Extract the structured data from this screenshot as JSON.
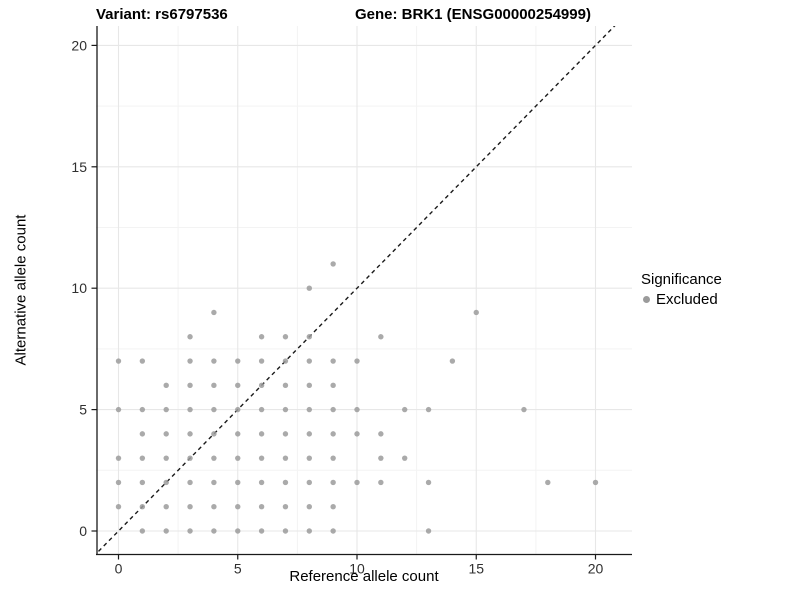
{
  "chart_data": {
    "type": "scatter",
    "titles": {
      "left": "Variant: rs6797536",
      "right": "Gene: BRK1 (ENSG00000254999)"
    },
    "xlabel": "Reference allele count",
    "ylabel": "Alternative allele count",
    "x_ticks": [
      0,
      5,
      10,
      15,
      20
    ],
    "y_ticks": [
      0,
      5,
      10,
      15,
      20
    ],
    "minor_ticks": [
      2.5,
      7.5,
      12.5,
      17.5
    ],
    "xlim": [
      -1,
      21
    ],
    "ylim": [
      -1,
      21
    ],
    "grid": "major and minor, light gray, on white panel",
    "identity_line": {
      "equation": "y = x",
      "style": "dashed",
      "color": "#1a1a1a"
    },
    "point_color": "#9b9b9b",
    "legend": {
      "title": "Significance",
      "position": "right",
      "items": [
        {
          "label": "Excluded",
          "color": "#9b9b9b"
        }
      ]
    },
    "points": [
      [
        1,
        0
      ],
      [
        2,
        0
      ],
      [
        3,
        0
      ],
      [
        4,
        0
      ],
      [
        5,
        0
      ],
      [
        6,
        0
      ],
      [
        7,
        0
      ],
      [
        8,
        0
      ],
      [
        9,
        0
      ],
      [
        13,
        0
      ],
      [
        0,
        1
      ],
      [
        1,
        1
      ],
      [
        2,
        1
      ],
      [
        3,
        1
      ],
      [
        4,
        1
      ],
      [
        5,
        1
      ],
      [
        6,
        1
      ],
      [
        7,
        1
      ],
      [
        8,
        1
      ],
      [
        9,
        1
      ],
      [
        0,
        2
      ],
      [
        1,
        2
      ],
      [
        2,
        2
      ],
      [
        3,
        2
      ],
      [
        4,
        2
      ],
      [
        5,
        2
      ],
      [
        6,
        2
      ],
      [
        7,
        2
      ],
      [
        8,
        2
      ],
      [
        9,
        2
      ],
      [
        10,
        2
      ],
      [
        11,
        2
      ],
      [
        13,
        2
      ],
      [
        18,
        2
      ],
      [
        20,
        2
      ],
      [
        0,
        3
      ],
      [
        1,
        3
      ],
      [
        2,
        3
      ],
      [
        3,
        3
      ],
      [
        4,
        3
      ],
      [
        5,
        3
      ],
      [
        6,
        3
      ],
      [
        7,
        3
      ],
      [
        8,
        3
      ],
      [
        9,
        3
      ],
      [
        11,
        3
      ],
      [
        12,
        3
      ],
      [
        1,
        4
      ],
      [
        2,
        4
      ],
      [
        3,
        4
      ],
      [
        4,
        4
      ],
      [
        5,
        4
      ],
      [
        6,
        4
      ],
      [
        7,
        4
      ],
      [
        8,
        4
      ],
      [
        9,
        4
      ],
      [
        10,
        4
      ],
      [
        11,
        4
      ],
      [
        0,
        5
      ],
      [
        1,
        5
      ],
      [
        2,
        5
      ],
      [
        3,
        5
      ],
      [
        4,
        5
      ],
      [
        5,
        5
      ],
      [
        6,
        5
      ],
      [
        7,
        5
      ],
      [
        8,
        5
      ],
      [
        9,
        5
      ],
      [
        10,
        5
      ],
      [
        12,
        5
      ],
      [
        13,
        5
      ],
      [
        17,
        5
      ],
      [
        2,
        6
      ],
      [
        3,
        6
      ],
      [
        4,
        6
      ],
      [
        5,
        6
      ],
      [
        6,
        6
      ],
      [
        7,
        6
      ],
      [
        8,
        6
      ],
      [
        9,
        6
      ],
      [
        0,
        7
      ],
      [
        1,
        7
      ],
      [
        3,
        7
      ],
      [
        4,
        7
      ],
      [
        5,
        7
      ],
      [
        6,
        7
      ],
      [
        7,
        7
      ],
      [
        8,
        7
      ],
      [
        9,
        7
      ],
      [
        10,
        7
      ],
      [
        14,
        7
      ],
      [
        3,
        8
      ],
      [
        6,
        8
      ],
      [
        7,
        8
      ],
      [
        8,
        8
      ],
      [
        11,
        8
      ],
      [
        4,
        9
      ],
      [
        15,
        9
      ],
      [
        8,
        10
      ],
      [
        9,
        11
      ]
    ],
    "colors": {
      "major_grid": "#e7e7e7",
      "minor_grid": "#f3f3f3",
      "axis": "#1a1a1a",
      "tick_text": "#303030"
    }
  }
}
